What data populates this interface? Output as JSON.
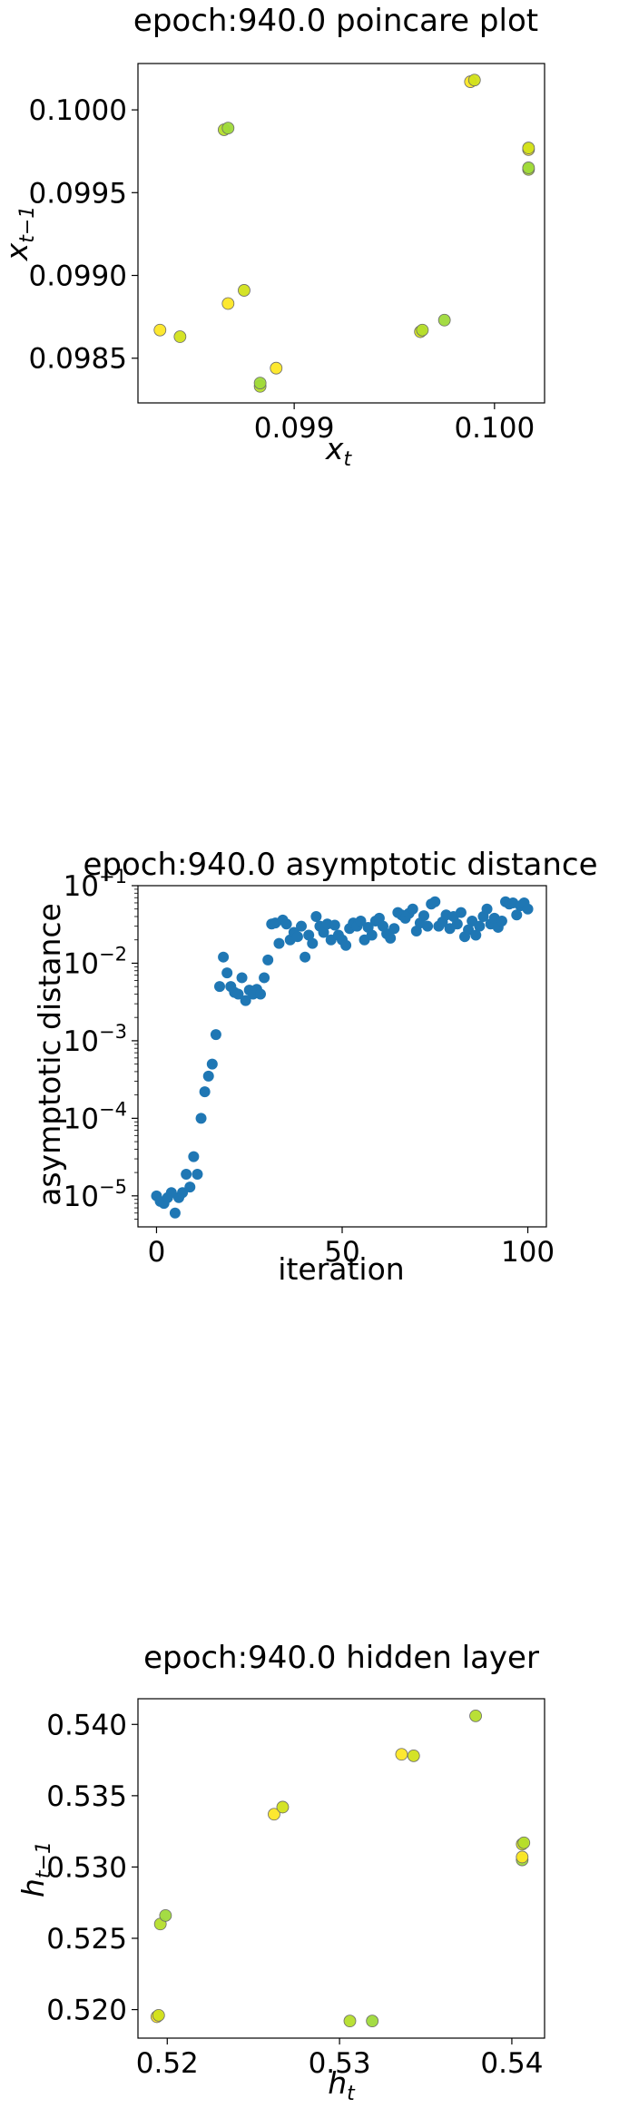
{
  "chart_data": [
    {
      "type": "scatter",
      "title": "epoch:940.0 poincare plot",
      "xlabel_base": "x",
      "xlabel_sub": "t",
      "ylabel_base": "x",
      "ylabel_sub": "t−1",
      "xlim": [
        0.09822,
        0.10025
      ],
      "ylim": [
        0.09823,
        0.10028
      ],
      "xticks": [
        0.099,
        0.1
      ],
      "xtick_labels": [
        "0.099",
        "0.100"
      ],
      "yticks": [
        0.0985,
        0.099,
        0.0995,
        0.1
      ],
      "ytick_labels": [
        "0.0985",
        "0.0990",
        "0.0995",
        "0.1000"
      ],
      "points": [
        {
          "x": 0.09833,
          "y": 0.09867
        },
        {
          "x": 0.09843,
          "y": 0.09863
        },
        {
          "x": 0.09865,
          "y": 0.09988
        },
        {
          "x": 0.09867,
          "y": 0.09989
        },
        {
          "x": 0.09867,
          "y": 0.09883
        },
        {
          "x": 0.09875,
          "y": 0.09891
        },
        {
          "x": 0.09883,
          "y": 0.09833
        },
        {
          "x": 0.09883,
          "y": 0.09835
        },
        {
          "x": 0.09891,
          "y": 0.09844
        },
        {
          "x": 0.09963,
          "y": 0.09866
        },
        {
          "x": 0.09964,
          "y": 0.09867
        },
        {
          "x": 0.09975,
          "y": 0.09873
        },
        {
          "x": 0.09988,
          "y": 0.10017
        },
        {
          "x": 0.0999,
          "y": 0.10018
        },
        {
          "x": 0.10017,
          "y": 0.09964
        },
        {
          "x": 0.10017,
          "y": 0.09965
        },
        {
          "x": 0.10017,
          "y": 0.09976
        },
        {
          "x": 0.10017,
          "y": 0.09977
        }
      ],
      "point_colors": [
        "#fde725",
        "#d2e21b",
        "#b5de2b",
        "#9fda3a"
      ]
    },
    {
      "type": "scatter",
      "title": "epoch:940.0 asymptotic distance",
      "xlabel": "iteration",
      "ylabel": "asymptotic distance",
      "yscale": "log",
      "xlim": [
        -5,
        105
      ],
      "ylim_exp": [
        -5.4,
        -1
      ],
      "xticks": [
        0,
        50,
        100
      ],
      "xtick_labels": [
        "0",
        "50",
        "100"
      ],
      "yticks_exp": [
        -5,
        -4,
        -3,
        -2,
        -1
      ],
      "ytick_base": "10",
      "ytick_exponents": [
        "−5",
        "−4",
        "−3",
        "−2",
        "−1"
      ],
      "color": "#1f77b4",
      "x": [
        0,
        1,
        2,
        3,
        4,
        5,
        6,
        7,
        8,
        9,
        10,
        11,
        12,
        13,
        14,
        15,
        16,
        17,
        18,
        19,
        20,
        21,
        22,
        23,
        24,
        25,
        26,
        27,
        28,
        29,
        30,
        31,
        32,
        33,
        34,
        35,
        36,
        37,
        38,
        39,
        40,
        41,
        42,
        43,
        44,
        45,
        46,
        47,
        48,
        49,
        50,
        51,
        52,
        53,
        54,
        55,
        56,
        57,
        58,
        59,
        60,
        61,
        62,
        63,
        64,
        65,
        66,
        67,
        68,
        69,
        70,
        71,
        72,
        73,
        74,
        75,
        76,
        77,
        78,
        79,
        80,
        81,
        82,
        83,
        84,
        85,
        86,
        87,
        88,
        89,
        90,
        91,
        92,
        93,
        94,
        95,
        96,
        97,
        98,
        99,
        100
      ],
      "y": [
        1e-05,
        8.5e-06,
        8e-06,
        9.5e-06,
        1.1e-05,
        6e-06,
        9.5e-06,
        1.1e-05,
        1.9e-05,
        1.3e-05,
        3.2e-05,
        1.9e-05,
        0.0001,
        0.00022,
        0.00035,
        0.0005,
        0.0012,
        0.005,
        0.012,
        0.0075,
        0.005,
        0.0042,
        0.004,
        0.0065,
        0.0033,
        0.0045,
        0.004,
        0.0046,
        0.004,
        0.0065,
        0.011,
        0.032,
        0.033,
        0.018,
        0.036,
        0.032,
        0.02,
        0.025,
        0.022,
        0.03,
        0.012,
        0.023,
        0.018,
        0.04,
        0.03,
        0.025,
        0.032,
        0.02,
        0.031,
        0.023,
        0.02,
        0.017,
        0.028,
        0.033,
        0.03,
        0.035,
        0.02,
        0.029,
        0.023,
        0.035,
        0.038,
        0.03,
        0.024,
        0.021,
        0.028,
        0.045,
        0.042,
        0.038,
        0.044,
        0.05,
        0.026,
        0.033,
        0.041,
        0.03,
        0.058,
        0.062,
        0.03,
        0.034,
        0.042,
        0.028,
        0.04,
        0.032,
        0.045,
        0.022,
        0.027,
        0.035,
        0.023,
        0.03,
        0.04,
        0.05,
        0.032,
        0.038,
        0.029,
        0.035,
        0.062,
        0.058,
        0.06,
        0.042,
        0.055,
        0.06,
        0.05
      ]
    },
    {
      "type": "scatter",
      "title": "epoch:940.0 hidden layer",
      "xlabel_base": "h",
      "xlabel_sub": "t",
      "ylabel_base": "h",
      "ylabel_sub": "t−1",
      "xlim": [
        0.5183,
        0.5419
      ],
      "ylim": [
        0.518,
        0.5418
      ],
      "xticks": [
        0.52,
        0.53,
        0.54
      ],
      "xtick_labels": [
        "0.52",
        "0.53",
        "0.54"
      ],
      "yticks": [
        0.52,
        0.525,
        0.53,
        0.535,
        0.54
      ],
      "ytick_labels": [
        "0.520",
        "0.525",
        "0.530",
        "0.535",
        "0.540"
      ],
      "points": [
        {
          "x": 0.5194,
          "y": 0.5195
        },
        {
          "x": 0.5195,
          "y": 0.5196
        },
        {
          "x": 0.5196,
          "y": 0.526
        },
        {
          "x": 0.5199,
          "y": 0.5266
        },
        {
          "x": 0.5262,
          "y": 0.5337
        },
        {
          "x": 0.5267,
          "y": 0.5342
        },
        {
          "x": 0.5306,
          "y": 0.5192
        },
        {
          "x": 0.5319,
          "y": 0.5192
        },
        {
          "x": 0.5336,
          "y": 0.5379
        },
        {
          "x": 0.5343,
          "y": 0.5378
        },
        {
          "x": 0.5379,
          "y": 0.5406
        },
        {
          "x": 0.5406,
          "y": 0.5305
        },
        {
          "x": 0.5406,
          "y": 0.5307
        },
        {
          "x": 0.5406,
          "y": 0.5316
        },
        {
          "x": 0.5407,
          "y": 0.5317
        }
      ],
      "point_colors": [
        "#fde725",
        "#d2e21b",
        "#b5de2b",
        "#9fda3a"
      ]
    }
  ]
}
